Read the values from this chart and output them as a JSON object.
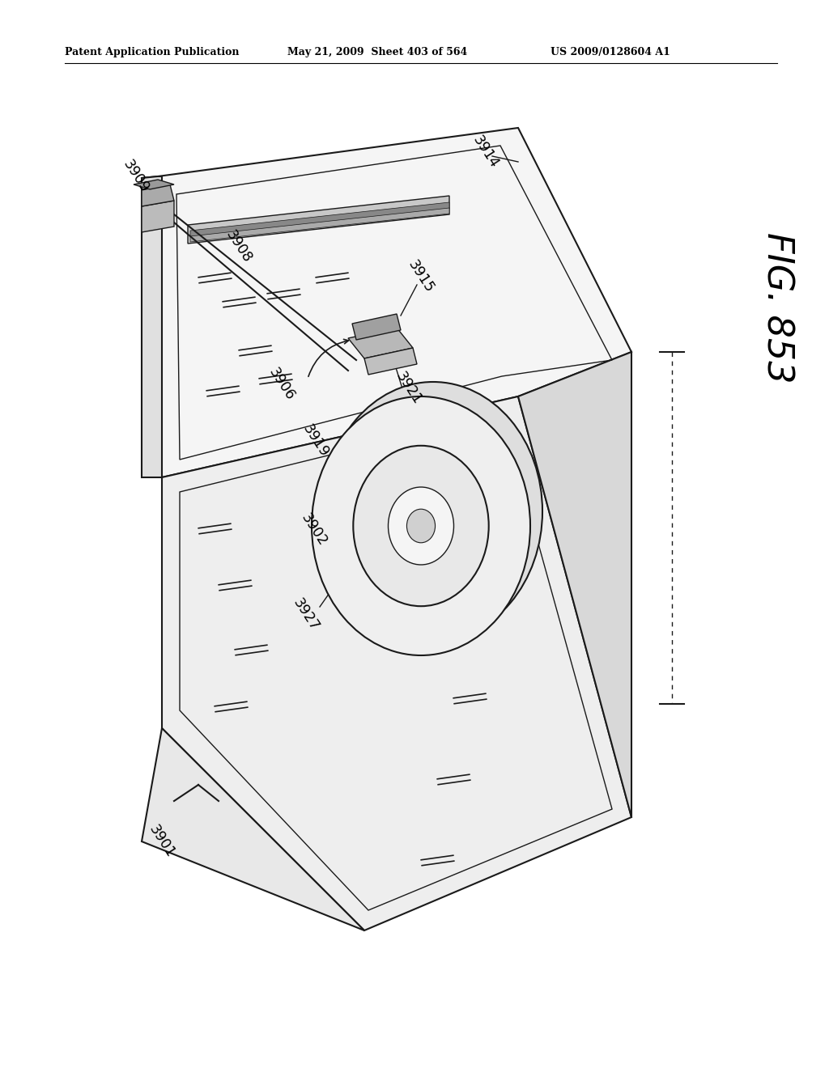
{
  "header_left": "Patent Application Publication",
  "header_mid": "May 21, 2009  Sheet 403 of 564",
  "header_right": "US 2009/0128604 A1",
  "fig_label": "FIG. 853",
  "bg_color": "#ffffff",
  "line_color": "#1a1a1a",
  "gray_fill": "#f2f2f2",
  "gray_face": "#e8e8e8",
  "gray_side": "#d8d8d8",
  "roll_outer": "#e0e0e0",
  "roll_inner": "#f0f0f0"
}
